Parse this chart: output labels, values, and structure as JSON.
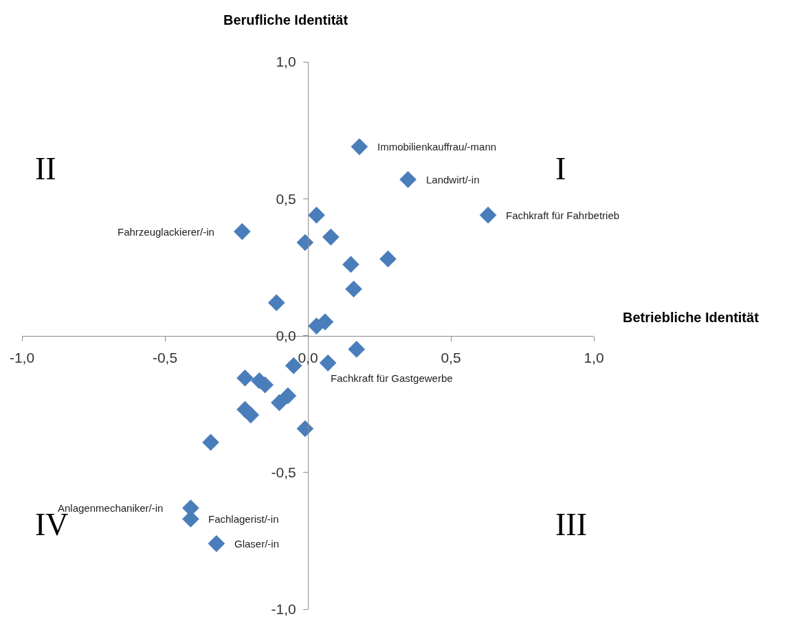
{
  "chart_data": {
    "type": "scatter",
    "xlabel": "Betriebliche Identität",
    "ylabel": "Berufliche Identität",
    "x": [
      0.18,
      0.35,
      0.63,
      0.03,
      -0.23,
      -0.01,
      0.08,
      0.15,
      0.28,
      0.16,
      -0.11,
      0.03,
      0.06,
      0.17,
      0.07,
      -0.05,
      -0.22,
      -0.17,
      -0.15,
      -0.07,
      -0.1,
      -0.22,
      -0.2,
      -0.01,
      -0.34,
      -0.41,
      -0.41,
      -0.32
    ],
    "series": [
      {
        "color": "#4a7ebb",
        "values": [
          0.69,
          0.57,
          0.44,
          0.44,
          0.38,
          0.34,
          0.36,
          0.26,
          0.28,
          0.17,
          0.12,
          0.035,
          0.05,
          -0.05,
          -0.1,
          -0.11,
          -0.155,
          -0.165,
          -0.18,
          -0.22,
          -0.245,
          -0.27,
          -0.29,
          -0.34,
          -0.39,
          -0.63,
          -0.67,
          -0.76
        ]
      }
    ],
    "marker": "diamond",
    "xlim": [
      -1,
      1
    ],
    "ylim": [
      -1,
      1
    ],
    "xticks": [
      {
        "value": -1,
        "label": "-1,0"
      },
      {
        "value": -0.5,
        "label": "-0,5"
      },
      {
        "value": 0,
        "label": "0,0"
      },
      {
        "value": 0.5,
        "label": "0,5"
      },
      {
        "value": 1,
        "label": "1,0"
      }
    ],
    "yticks": [
      {
        "value": -1,
        "label": "-1,0"
      },
      {
        "value": -0.5,
        "label": "-0,5"
      },
      {
        "value": 0,
        "label": "0,0"
      },
      {
        "value": 0.5,
        "label": "0,5"
      },
      {
        "value": 1,
        "label": "1,0"
      }
    ],
    "annotations": [
      {
        "text": "Immobilienkauffrau/-mann",
        "x": 0.18,
        "y": 0.69
      },
      {
        "text": "Landwirt/-in",
        "x": 0.35,
        "y": 0.57
      },
      {
        "text": "Fachkraft für Fahrbetrieb",
        "x": 0.63,
        "y": 0.44
      },
      {
        "text": "Fahrzeuglackierer/-in",
        "x": -0.23,
        "y": 0.38
      },
      {
        "text": "Fachkraft für Gastgewerbe",
        "x": 0.07,
        "y": -0.1
      },
      {
        "text": "Anlagenmechaniker/-in",
        "x": -0.41,
        "y": -0.63
      },
      {
        "text": "Fachlagerist/-in",
        "x": -0.41,
        "y": -0.67
      },
      {
        "text": "Glaser/-in",
        "x": -0.32,
        "y": -0.76
      },
      "I",
      "II",
      "III",
      "IV"
    ]
  }
}
